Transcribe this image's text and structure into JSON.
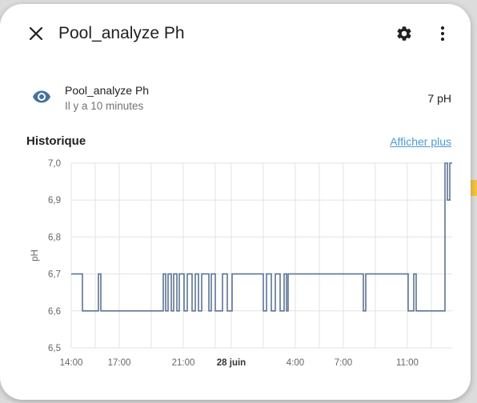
{
  "dialog": {
    "title": "Pool_analyze Ph",
    "close_icon": "close-icon",
    "settings_icon": "gear-icon",
    "menu_icon": "more-vert-icon"
  },
  "entity": {
    "icon": "eye-icon",
    "name": "Pool_analyze Ph",
    "last_changed": "Il y a 10 minutes",
    "state": "7 pH"
  },
  "history": {
    "label": "Historique",
    "show_more": "Afficher plus"
  },
  "colors": {
    "accent": "#4e9ad3",
    "line": "#5d7595",
    "icon": "#44739e"
  },
  "chart_data": {
    "type": "line",
    "step": true,
    "ylabel": "pH",
    "ylim": [
      6.5,
      7.0
    ],
    "yticks": [
      "7,0",
      "6,9",
      "6,8",
      "6,7",
      "6,6",
      "6,5"
    ],
    "ytick_values": [
      7.0,
      6.9,
      6.8,
      6.7,
      6.6,
      6.5
    ],
    "xlim": [
      14.0,
      37.8
    ],
    "xticks": [
      {
        "label": "14:00",
        "value": 14,
        "bold": false
      },
      {
        "label": "17:00",
        "value": 17,
        "bold": false
      },
      {
        "label": "21:00",
        "value": 21,
        "bold": false
      },
      {
        "label": "28 juin",
        "value": 24,
        "bold": true
      },
      {
        "label": "4:00",
        "value": 28,
        "bold": false
      },
      {
        "label": "7:00",
        "value": 31,
        "bold": false
      },
      {
        "label": "11:00",
        "value": 35,
        "bold": false
      }
    ],
    "x_grid": [
      14,
      15.5,
      17,
      19,
      21,
      23,
      24,
      26,
      28,
      29.5,
      31,
      33,
      35,
      36.5
    ],
    "series": [
      {
        "points": [
          [
            14.0,
            6.7
          ],
          [
            14.7,
            6.6
          ],
          [
            15.7,
            6.7
          ],
          [
            15.85,
            6.6
          ],
          [
            19.75,
            6.7
          ],
          [
            19.9,
            6.6
          ],
          [
            20.05,
            6.7
          ],
          [
            20.25,
            6.6
          ],
          [
            20.4,
            6.7
          ],
          [
            20.6,
            6.6
          ],
          [
            20.75,
            6.7
          ],
          [
            21.05,
            6.6
          ],
          [
            21.25,
            6.7
          ],
          [
            21.55,
            6.6
          ],
          [
            21.75,
            6.7
          ],
          [
            21.95,
            6.6
          ],
          [
            22.15,
            6.7
          ],
          [
            22.6,
            6.6
          ],
          [
            22.75,
            6.7
          ],
          [
            23.0,
            6.6
          ],
          [
            23.45,
            6.7
          ],
          [
            23.75,
            6.6
          ],
          [
            24.05,
            6.7
          ],
          [
            26.0,
            6.6
          ],
          [
            26.2,
            6.7
          ],
          [
            26.5,
            6.6
          ],
          [
            26.75,
            6.7
          ],
          [
            27.05,
            6.6
          ],
          [
            27.3,
            6.7
          ],
          [
            27.45,
            6.6
          ],
          [
            27.55,
            6.7
          ],
          [
            32.25,
            6.6
          ],
          [
            32.4,
            6.7
          ],
          [
            35.05,
            6.6
          ],
          [
            35.4,
            6.7
          ],
          [
            35.55,
            6.6
          ],
          [
            37.35,
            7.0
          ],
          [
            37.5,
            6.9
          ],
          [
            37.65,
            7.0
          ],
          [
            37.8,
            7.0
          ]
        ]
      }
    ]
  }
}
